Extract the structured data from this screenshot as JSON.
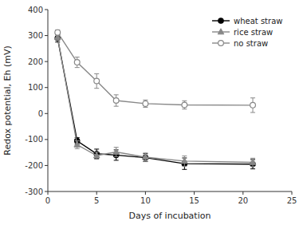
{
  "chart_data": {
    "type": "line",
    "xlabel": "Days of incubation",
    "ylabel": "Redox potential, Eh (mV)",
    "x": [
      1,
      3,
      5,
      7,
      10,
      14,
      21
    ],
    "series": [
      {
        "name": "wheat straw",
        "color": "#000000",
        "marker": "circle",
        "line_style": "solid",
        "values": [
          290,
          -105,
          -155,
          -160,
          -170,
          -193,
          -195
        ],
        "errors": [
          15,
          12,
          18,
          20,
          15,
          22,
          18
        ]
      },
      {
        "name": "rice straw",
        "color": "#888888",
        "marker": "triangle",
        "line_style": "solid",
        "values": [
          293,
          -120,
          -162,
          -148,
          -168,
          -183,
          -188
        ],
        "errors": [
          10,
          15,
          14,
          18,
          16,
          20,
          16
        ]
      },
      {
        "name": "no straw",
        "color": "#888888",
        "marker": "open-circle",
        "line_style": "solid",
        "values": [
          312,
          197,
          125,
          50,
          38,
          33,
          32
        ],
        "errors": [
          10,
          20,
          28,
          22,
          14,
          16,
          28
        ]
      }
    ],
    "xlim": [
      0,
      25
    ],
    "ylim": [
      -300,
      400
    ],
    "xticks": [
      0,
      5,
      10,
      15,
      20,
      25
    ],
    "yticks": [
      -300,
      -200,
      -100,
      0,
      100,
      200,
      300,
      400
    ],
    "grid": false,
    "legend": "upper-right"
  }
}
